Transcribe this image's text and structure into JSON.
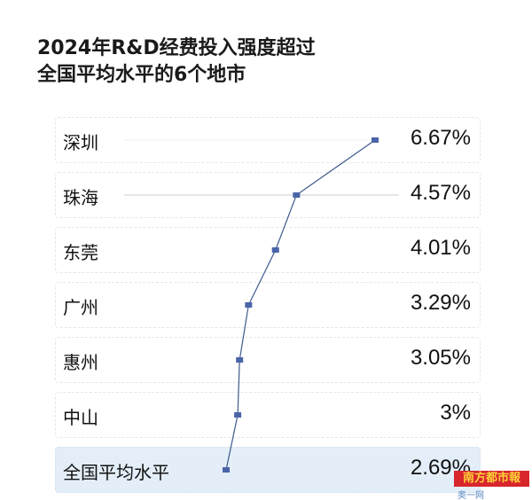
{
  "chart_data": {
    "type": "line",
    "title": "2024年R&D经费投入强度超过\n全国平均水平的6个地市",
    "title_lines": [
      "2024年R&D经费投入强度超过",
      "全国平均水平的6个地市"
    ],
    "categories": [
      "深圳",
      "珠海",
      "东莞",
      "广州",
      "惠州",
      "中山",
      "全国平均水平"
    ],
    "values": [
      6.67,
      4.57,
      4.01,
      3.29,
      3.05,
      3.0,
      2.69
    ],
    "value_labels": [
      "6.67%",
      "4.57%",
      "4.01%",
      "3.29%",
      "3.05%",
      "3%",
      "2.69%"
    ],
    "orientation": "horizontal",
    "highlighted_category": "全国平均水平",
    "grid": false,
    "colors": {
      "line": "#3e5a8c",
      "marker": "#4a64a8",
      "highlight": "#e3eef8"
    }
  },
  "watermark": {
    "logo": "南方都市報",
    "site": "奥一网oeeee.com"
  }
}
